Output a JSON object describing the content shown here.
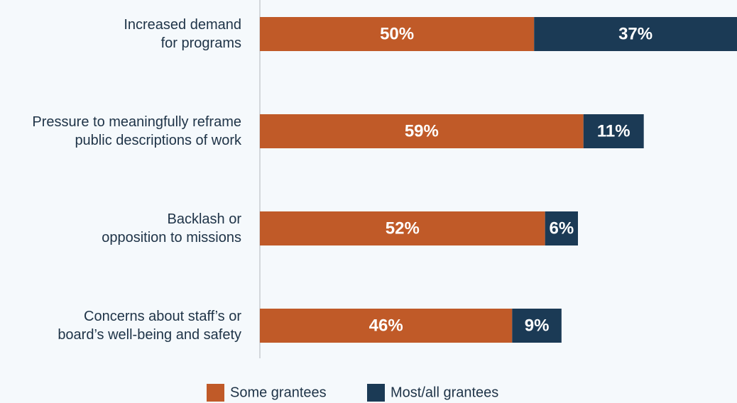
{
  "chart_data": {
    "type": "stacked_bar_horizontal",
    "categories": [
      "Increased demand\nfor programs",
      "Pressure to meaningfully reframe\npublic descriptions of work",
      "Backlash or\nopposition to missions",
      "Concerns about staff’s or\nboard’s well-being and safety"
    ],
    "series": [
      {
        "name": "Some grantees",
        "color": "#c05a28",
        "values": [
          50,
          59,
          52,
          46
        ],
        "value_labels": [
          "50%",
          "59%",
          "52%",
          "46%"
        ]
      },
      {
        "name": "Most/all grantees",
        "color": "#1b3a55",
        "values": [
          37,
          11,
          6,
          9
        ],
        "value_labels": [
          "37%",
          "11%",
          "6%",
          "9%"
        ]
      }
    ],
    "xlim": [
      0,
      87
    ],
    "legend": "bottom"
  }
}
